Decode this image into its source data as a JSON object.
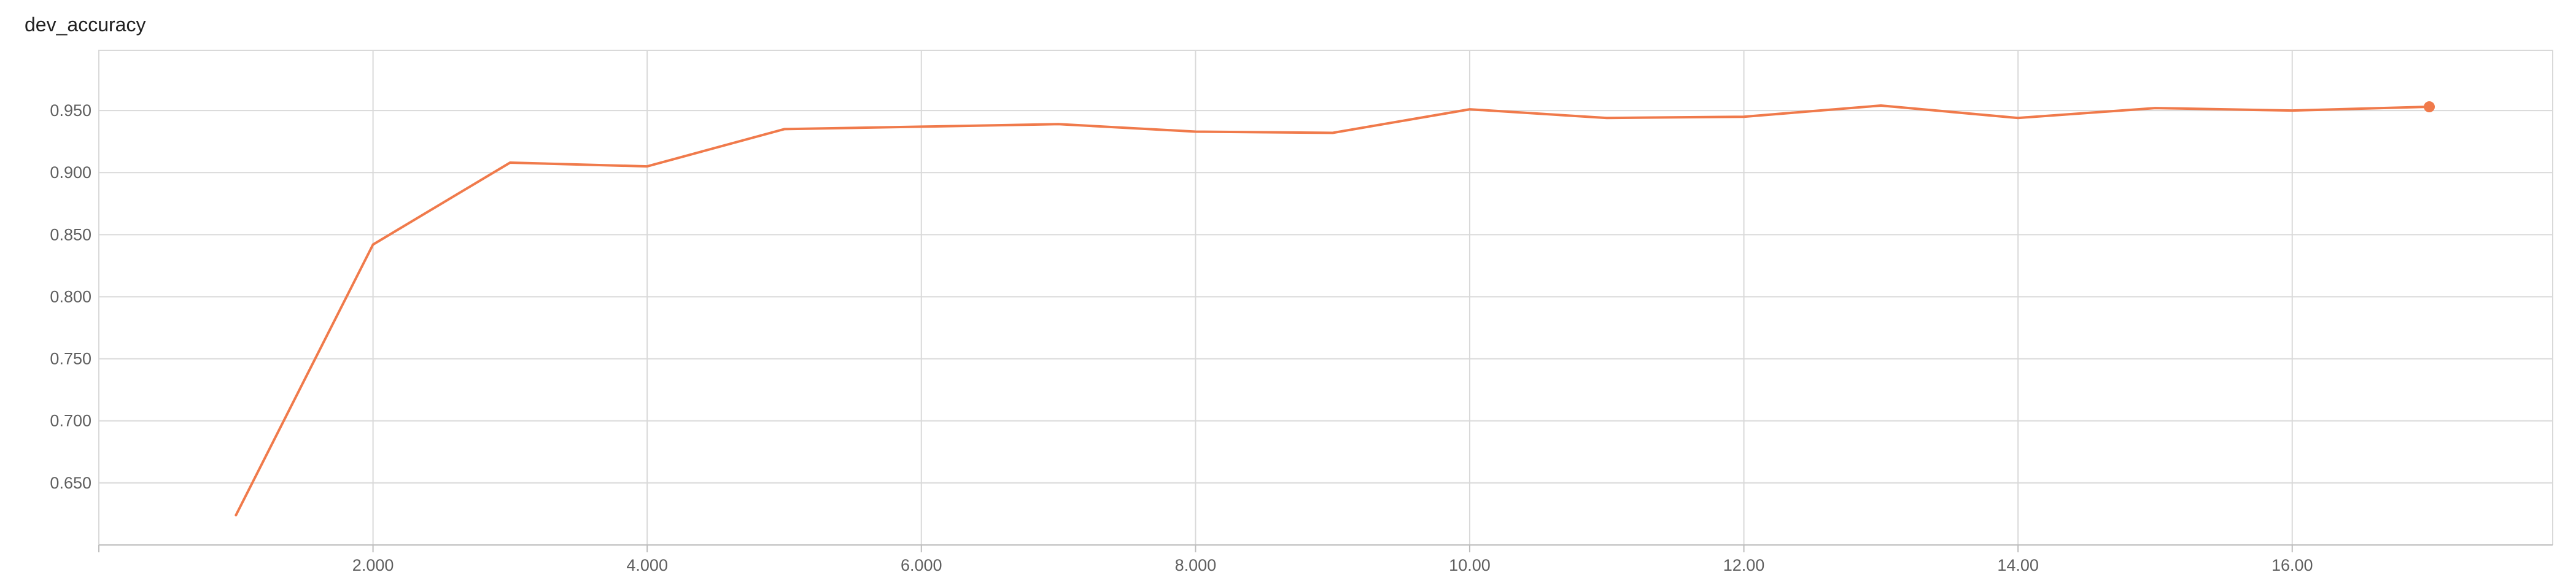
{
  "chart_data": {
    "type": "line",
    "title": "dev_accuracy",
    "xlabel": "",
    "ylabel": "",
    "xlim": [
      0,
      17.9
    ],
    "ylim": [
      0.6,
      0.9985
    ],
    "x_ticks": [
      2,
      4,
      6,
      8,
      10,
      12,
      14,
      16
    ],
    "x_tick_labels": [
      "2.000",
      "4.000",
      "6.000",
      "8.000",
      "10.00",
      "12.00",
      "14.00",
      "16.00"
    ],
    "y_ticks": [
      0.65,
      0.7,
      0.75,
      0.8,
      0.85,
      0.9,
      0.95
    ],
    "y_tick_labels": [
      "0.650",
      "0.700",
      "0.750",
      "0.800",
      "0.850",
      "0.900",
      "0.950"
    ],
    "grid": true,
    "series": [
      {
        "color": "#f07a4b",
        "x": [
          1,
          2,
          3,
          4,
          5,
          6,
          7,
          8,
          9,
          10,
          11,
          12,
          13,
          14,
          15,
          16,
          17
        ],
        "y": [
          0.624,
          0.842,
          0.908,
          0.905,
          0.935,
          0.937,
          0.939,
          0.933,
          0.932,
          0.951,
          0.944,
          0.945,
          0.954,
          0.944,
          0.952,
          0.95,
          0.953
        ]
      }
    ]
  }
}
